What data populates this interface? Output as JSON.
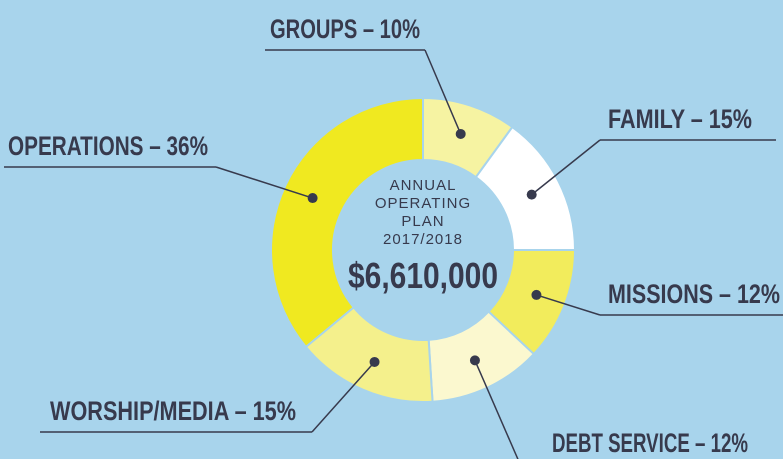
{
  "chart_data": {
    "type": "donut",
    "values": [
      10,
      15,
      12,
      12,
      15,
      36
    ],
    "value_labels": [
      "GROUPS – 10%",
      "FAMILY – 15%",
      "MISSIONS – 12%",
      "DEBT SERVICE – 12%",
      "WORSHIP/MEDIA – 15%",
      "OPERATIONS – 36%"
    ],
    "colors": [
      "#f6f3a2",
      "#ffffff",
      "#f2ec5c",
      "#fbf8cf",
      "#f4f08c",
      "#f0e920"
    ],
    "center_text": [
      "ANNUAL",
      "OPERATING",
      "PLAN",
      "2017/2018"
    ],
    "center_amount": "$6,610,000"
  }
}
